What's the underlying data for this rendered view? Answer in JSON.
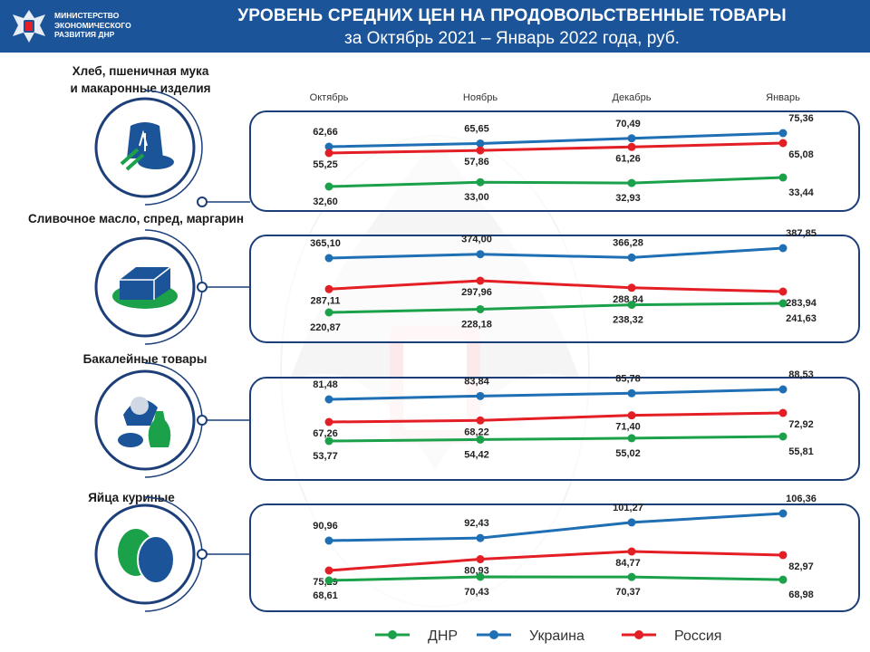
{
  "header": {
    "ministry_lines": [
      "МИНИСТЕРСТВО",
      "ЭКОНОМИЧЕСКОГО",
      "РАЗВИТИЯ ДНР"
    ],
    "title": "УРОВЕНЬ СРЕДНИХ ЦЕН НА ПРОДОВОЛЬСТВЕННЫЕ ТОВАРЫ",
    "subtitle": "за Октябрь 2021 – Январь 2022 года, руб."
  },
  "colors": {
    "ДНР": "#1aa14a",
    "Украина": "#1f6fb4",
    "Россия": "#e31e24",
    "frame": "#1c3f7a"
  },
  "chart_data": {
    "type": "line",
    "categories": [
      "Октябрь",
      "Ноябрь",
      "Декабрь",
      "Январь"
    ],
    "legend": [
      "ДНР",
      "Украина",
      "Россия"
    ],
    "legend_position": "bottom",
    "panels": [
      {
        "title": [
          "Хлеб, пшеничная мука",
          "и макаронные изделия"
        ],
        "icon": "bread-icon",
        "series": [
          {
            "name": "Украина",
            "values": [
              62.66,
              65.65,
              70.49,
              75.36
            ],
            "labels": [
              "62,66",
              "65,65",
              "70,49",
              "75,36"
            ]
          },
          {
            "name": "Россия",
            "values": [
              55.25,
              57.86,
              61.26,
              65.08
            ],
            "labels": [
              "55,25",
              "57,86",
              "61,26",
              "65,08"
            ]
          },
          {
            "name": "ДНР",
            "values": [
              32.6,
              33.0,
              32.93,
              33.44
            ],
            "labels": [
              "32,60",
              "33,00",
              "32,93",
              "33,44"
            ]
          }
        ]
      },
      {
        "title": [
          "Сливочное масло, спред, маргарин"
        ],
        "icon": "butter-icon",
        "series": [
          {
            "name": "Украина",
            "values": [
              365.1,
              374.0,
              366.28,
              387.85
            ],
            "labels": [
              "365,10",
              "374,00",
              "366,28",
              "387,85"
            ]
          },
          {
            "name": "Россия",
            "values": [
              287.11,
              297.96,
              288.84,
              283.94
            ],
            "labels": [
              "287,11",
              "297,96",
              "288,84",
              "283,94"
            ]
          },
          {
            "name": "ДНР",
            "values": [
              220.87,
              228.18,
              238.32,
              241.63
            ],
            "labels": [
              "220,87",
              "228,18",
              "238,32",
              "241,63"
            ]
          }
        ]
      },
      {
        "title": [
          "Бакалейные товары"
        ],
        "icon": "grocery-icon",
        "series": [
          {
            "name": "Украина",
            "values": [
              81.48,
              83.84,
              85.78,
              88.53
            ],
            "labels": [
              "81,48",
              "83,84",
              "85,78",
              "88,53"
            ]
          },
          {
            "name": "Россия",
            "values": [
              67.26,
              68.22,
              71.4,
              72.92
            ],
            "labels": [
              "67,26",
              "68,22",
              "71,40",
              "72,92"
            ]
          },
          {
            "name": "ДНР",
            "values": [
              53.77,
              54.42,
              55.02,
              55.81
            ],
            "labels": [
              "53,77",
              "54,42",
              "55,02",
              "55,81"
            ]
          }
        ]
      },
      {
        "title": [
          "Яйца куриные"
        ],
        "icon": "eggs-icon",
        "series": [
          {
            "name": "Украина",
            "values": [
              90.96,
              92.43,
              101.27,
              106.36
            ],
            "labels": [
              "90,96",
              "92,43",
              "101,27",
              "106,36"
            ]
          },
          {
            "name": "Россия",
            "values": [
              75.29,
              80.93,
              84.77,
              82.97
            ],
            "labels": [
              "75,29",
              "80,93",
              "84,77",
              "82,97"
            ]
          },
          {
            "name": "ДНР",
            "values": [
              68.61,
              70.43,
              70.37,
              68.98
            ],
            "labels": [
              "68,61",
              "70,43",
              "70,37",
              "68,98"
            ]
          }
        ]
      }
    ]
  }
}
